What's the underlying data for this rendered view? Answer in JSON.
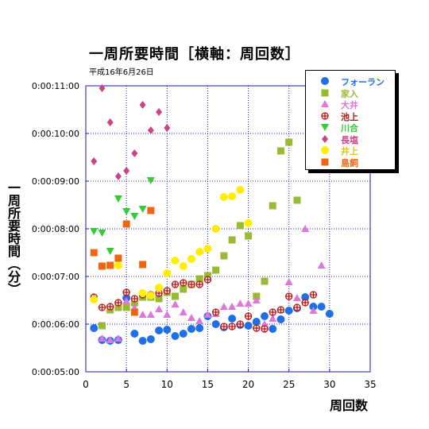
{
  "chart_data": {
    "type": "scatter",
    "title": "一周所要時間［横軸：周回数］",
    "subtitle": "平成16年6月26日",
    "xlabel": "周回数",
    "ylabel": "一周所要時間（分）",
    "xlim": [
      0,
      35
    ],
    "xticks": [
      "0",
      "5",
      "10",
      "15",
      "20",
      "25",
      "30",
      "35"
    ],
    "ylim_seconds": [
      300,
      660
    ],
    "yticks": [
      "0:00:05:00",
      "0:00:06:00",
      "0:00:07:00",
      "0:00:08:00",
      "0:00:09:00",
      "0:00:10:00",
      "0:00:11:00"
    ],
    "grid": true,
    "legend_position": "top-right",
    "series": [
      {
        "name": "フォーラン",
        "color": "#1f6fe8",
        "marker": "circle",
        "x": [
          1,
          2,
          3,
          4,
          5,
          6,
          7,
          8,
          9,
          10,
          11,
          12,
          13,
          14,
          15,
          16,
          17,
          18,
          19,
          20,
          21,
          22,
          23,
          24,
          25,
          26,
          27,
          28,
          29,
          30
        ],
        "y": [
          "0:05:55",
          "0:05:40",
          "0:05:39",
          "0:05:40",
          "0:06:33",
          "0:05:48",
          "0:05:39",
          "0:05:41",
          "0:05:52",
          "0:05:53",
          "0:05:45",
          "0:05:48",
          "0:05:54",
          "0:05:55",
          "0:06:10",
          "0:06:00",
          "0:05:56",
          "0:06:07",
          "0:05:59",
          "0:05:58",
          "0:06:03",
          "0:06:10",
          "0:05:54",
          "0:06:06",
          "0:06:17",
          "0:06:20",
          "0:06:34",
          "0:06:22",
          "0:06:22",
          "0:06:13"
        ]
      },
      {
        "name": "家入",
        "color": "#99bb33",
        "marker": "square",
        "x": [
          2,
          3,
          4,
          5,
          6,
          7,
          8,
          9,
          10,
          11,
          12,
          13,
          14,
          15,
          16,
          17,
          18,
          19,
          20,
          21,
          22,
          23,
          24,
          25,
          26
        ],
        "y": [
          "0:05:58",
          "0:06:18",
          "0:06:21",
          "0:06:21",
          "0:06:27",
          "0:06:34",
          "0:06:34",
          "0:06:32",
          "0:06:40",
          "0:06:35",
          "0:06:44",
          "0:06:50",
          "0:06:57",
          "0:07:01",
          "0:07:08",
          "0:07:26",
          "0:07:46",
          "0:08:04",
          "0:07:51",
          "0:06:35",
          "0:06:54",
          "0:08:29",
          "0:09:38",
          "0:09:49",
          "0:08:36"
        ]
      },
      {
        "name": "大井",
        "color": "#dd77dd",
        "marker": "triangle",
        "x": [
          2,
          3,
          4,
          5,
          6,
          7,
          8,
          9,
          10,
          11,
          12,
          13,
          14,
          15,
          16,
          17,
          18,
          19,
          20,
          21,
          22,
          23,
          24,
          25,
          26,
          27,
          28,
          29
        ],
        "y": [
          "0:05:42",
          "0:05:40",
          "0:05:42",
          "0:06:29",
          "0:06:21",
          "0:06:12",
          "0:06:12",
          "0:06:19",
          "0:06:12",
          "0:06:25",
          "0:06:15",
          "0:06:08",
          "0:06:04",
          "0:06:12",
          "0:06:13",
          "0:06:22",
          "0:06:22",
          "0:06:26",
          "0:06:26",
          "0:06:30",
          "0:06:00",
          "0:06:07",
          "0:06:18",
          "0:06:53",
          "0:06:33",
          "0:08:00",
          "0:06:17",
          "0:07:14"
        ]
      },
      {
        "name": "池上",
        "color": "#bb1111",
        "marker": "cross",
        "x": [
          1,
          2,
          3,
          4,
          5,
          6,
          7,
          8,
          9,
          10,
          11,
          12,
          13,
          14,
          15,
          16,
          17,
          18,
          19,
          20,
          21,
          22,
          23,
          24,
          25,
          26,
          27,
          28
        ],
        "y": [
          "0:06:34",
          "0:06:21",
          "0:06:22",
          "0:06:27",
          "0:06:40",
          "0:06:32",
          "0:06:37",
          "0:06:37",
          "0:06:39",
          "0:06:42",
          "0:06:50",
          "0:06:52",
          "0:06:50",
          "0:06:50",
          "0:06:56",
          "0:06:15",
          "0:05:57",
          "0:05:57",
          "0:06:00",
          "0:06:10",
          "0:05:55",
          "0:05:54",
          "0:06:15",
          "0:06:18",
          "0:06:35",
          "0:06:21",
          "0:06:27",
          "0:06:37"
        ]
      },
      {
        "name": "川合",
        "color": "#33cc33",
        "marker": "triangle-down",
        "x": [
          1,
          2,
          3,
          4,
          5,
          6,
          7,
          8
        ],
        "y": [
          "0:07:57",
          "0:07:55",
          "0:07:32",
          "0:08:38",
          "0:08:22",
          "0:08:16",
          "0:08:25",
          "0:09:01"
        ]
      },
      {
        "name": "長塩",
        "color": "#cc4488",
        "marker": "diamond",
        "x": [
          1,
          2,
          3,
          4,
          5,
          6,
          7,
          8,
          9,
          10
        ],
        "y": [
          "0:09:25",
          "0:10:57",
          "0:10:14",
          "0:09:06",
          "0:09:13",
          "0:09:35",
          "0:10:36",
          "0:10:04",
          "0:10:27",
          "0:10:07"
        ]
      },
      {
        "name": "井上",
        "color": "#ffee00",
        "marker": "circle",
        "x": [
          1,
          4,
          7,
          8,
          9,
          10,
          11,
          12,
          13,
          14,
          15,
          16,
          17,
          18,
          19,
          20
        ],
        "y": [
          "0:06:31",
          "0:07:14",
          "0:06:39",
          "0:06:36",
          "0:06:46",
          "0:07:04",
          "0:07:20",
          "0:07:13",
          "0:07:22",
          "0:07:31",
          "0:07:35",
          "0:08:00",
          "0:08:40",
          "0:08:41",
          "0:08:49",
          "0:08:07"
        ]
      },
      {
        "name": "島飼",
        "color": "#ee6611",
        "marker": "square",
        "x": [
          1,
          2,
          3,
          4,
          5,
          6,
          7,
          8
        ],
        "y": [
          "0:07:30",
          "0:07:13",
          "0:07:14",
          "0:07:23",
          "0:08:06",
          "0:06:15",
          "0:07:15",
          "0:08:23"
        ]
      }
    ]
  }
}
